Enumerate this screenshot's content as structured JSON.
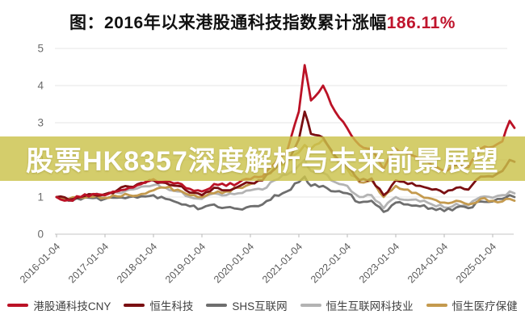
{
  "title": {
    "prefix": "图：2016年以来港股通科技指数累计涨幅",
    "highlight": "186.11%",
    "highlight_color": "#c0152d",
    "text_color": "#111111"
  },
  "overlay_banner": {
    "text": "股票HK8357深度解析与未来前景展望",
    "bg_color": "#cac24a",
    "bg_opacity": 0.82,
    "text_color": "#ffffff"
  },
  "chart_data": {
    "type": "line",
    "title": "图：2016年以来港股通科技指数累计涨幅186.11%",
    "xlabel": "",
    "ylabel": "",
    "ylim": [
      0,
      5
    ],
    "y_ticks": [
      0,
      1,
      2,
      3,
      4,
      5
    ],
    "grid": true,
    "legend_position": "bottom",
    "x_unit": "decimal_year",
    "x_tick_labels": [
      "2016-01-04",
      "2017-01-04",
      "2018-01-04",
      "2019-01-04",
      "2020-01-04",
      "2021-01-04",
      "2022-01-04",
      "2023-01-04",
      "2024-01-04",
      "2025-01-04"
    ],
    "x": [
      2016.0,
      2016.25,
      2016.5,
      2016.75,
      2017.0,
      2017.25,
      2017.5,
      2017.75,
      2018.0,
      2018.25,
      2018.5,
      2018.75,
      2019.0,
      2019.25,
      2019.5,
      2019.75,
      2020.0,
      2020.25,
      2020.5,
      2020.75,
      2021.0,
      2021.12,
      2021.25,
      2021.5,
      2021.75,
      2022.0,
      2022.25,
      2022.5,
      2022.75,
      2023.0,
      2023.25,
      2023.5,
      2023.75,
      2024.0,
      2024.25,
      2024.5,
      2024.75,
      2025.0,
      2025.2,
      2025.35,
      2025.45
    ],
    "series": [
      {
        "name": "港股通科技CNY",
        "color": "#bb1226",
        "values": [
          1.0,
          0.92,
          1.0,
          1.08,
          1.05,
          1.15,
          1.25,
          1.35,
          1.48,
          1.42,
          1.38,
          1.22,
          1.15,
          1.35,
          1.3,
          1.38,
          1.48,
          1.55,
          1.9,
          2.2,
          3.3,
          4.55,
          3.6,
          4.0,
          3.3,
          2.85,
          2.4,
          2.3,
          1.75,
          2.3,
          2.15,
          2.0,
          1.85,
          1.7,
          1.85,
          1.8,
          2.3,
          2.35,
          2.5,
          3.05,
          2.86
        ]
      },
      {
        "name": "恒生科技",
        "color": "#7a0f12",
        "values": [
          1.0,
          0.93,
          1.0,
          1.07,
          1.08,
          1.18,
          1.28,
          1.38,
          1.45,
          1.38,
          1.3,
          1.12,
          1.05,
          1.25,
          1.18,
          1.28,
          1.38,
          1.45,
          1.75,
          1.95,
          2.55,
          3.3,
          2.7,
          2.6,
          2.1,
          1.85,
          1.45,
          1.5,
          1.05,
          1.45,
          1.35,
          1.3,
          1.2,
          1.1,
          1.25,
          1.2,
          1.55,
          1.55,
          1.7,
          2.0,
          1.95
        ]
      },
      {
        "name": "SHS互联网",
        "color": "#6e6e6e",
        "values": [
          1.0,
          0.9,
          0.93,
          0.97,
          0.95,
          0.98,
          1.0,
          1.02,
          1.05,
          0.95,
          0.85,
          0.75,
          0.7,
          0.8,
          0.72,
          0.68,
          0.75,
          0.8,
          1.05,
          1.15,
          1.4,
          1.55,
          1.3,
          1.3,
          1.15,
          1.1,
          0.85,
          0.9,
          0.6,
          0.85,
          0.8,
          0.75,
          0.7,
          0.62,
          0.72,
          0.7,
          0.88,
          0.88,
          0.95,
          1.05,
          1.0
        ]
      },
      {
        "name": "恒生互联网科技业",
        "color": "#b3b3b3",
        "values": [
          1.0,
          0.94,
          1.0,
          1.05,
          1.05,
          1.12,
          1.2,
          1.28,
          1.32,
          1.25,
          1.15,
          1.0,
          0.95,
          1.1,
          1.05,
          1.1,
          1.18,
          1.2,
          1.45,
          1.6,
          1.85,
          2.0,
          1.7,
          1.65,
          1.4,
          1.3,
          1.0,
          1.05,
          0.7,
          1.0,
          0.92,
          0.88,
          0.8,
          0.72,
          0.82,
          0.78,
          1.0,
          0.98,
          1.05,
          1.15,
          1.1
        ]
      },
      {
        "name": "恒生医疗保健",
        "color": "#c49a4e",
        "values": [
          1.0,
          0.95,
          0.98,
          1.0,
          0.98,
          1.02,
          1.05,
          1.08,
          1.18,
          1.25,
          1.2,
          1.05,
          1.0,
          1.1,
          1.15,
          1.25,
          1.35,
          1.45,
          1.8,
          1.95,
          2.2,
          2.4,
          2.3,
          2.55,
          2.05,
          1.75,
          1.4,
          1.45,
          1.0,
          1.3,
          1.2,
          1.05,
          0.95,
          0.85,
          0.9,
          0.8,
          0.95,
          0.9,
          0.88,
          0.95,
          0.9
        ]
      }
    ]
  }
}
